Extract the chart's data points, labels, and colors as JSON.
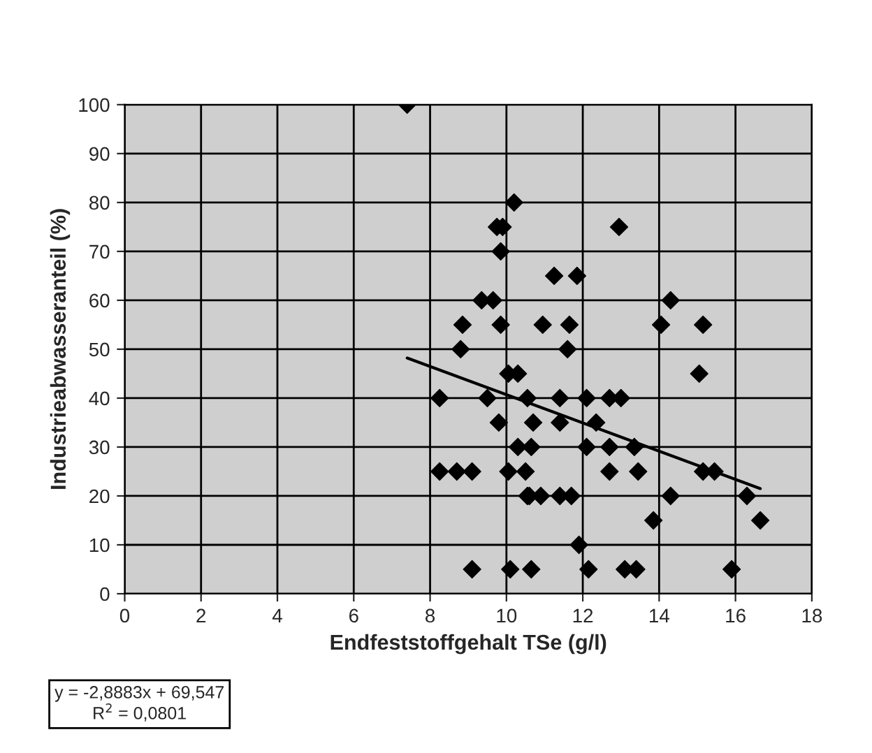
{
  "chart_data": {
    "type": "scatter",
    "xlabel": "Endfeststoffgehalt TSe (g/l)",
    "ylabel": "Industrieabwasseranteil (%)",
    "series": [
      {
        "color": "#000000",
        "marker": "diamond",
        "x": [
          7.4,
          10.2,
          9.75,
          9.9,
          12.95,
          9.85,
          11.25,
          11.85,
          9.35,
          9.65,
          14.3,
          8.85,
          9.85,
          10.95,
          11.65,
          14.05,
          15.15,
          8.8,
          11.6,
          10.05,
          10.3,
          15.05,
          8.25,
          9.5,
          10.55,
          11.4,
          12.1,
          12.7,
          13.0,
          9.8,
          10.7,
          11.4,
          12.35,
          10.3,
          10.65,
          12.1,
          12.7,
          13.35,
          8.25,
          8.7,
          9.1,
          10.05,
          10.5,
          12.7,
          13.45,
          15.15,
          15.45,
          10.6,
          10.55,
          10.9,
          11.4,
          11.7,
          14.3,
          16.3,
          13.85,
          16.65,
          11.9,
          9.1,
          10.1,
          10.65,
          12.15,
          13.1,
          13.4,
          15.9
        ],
        "values": [
          100,
          80,
          75,
          75,
          75,
          70,
          65,
          65,
          60,
          60,
          60,
          55,
          55,
          55,
          55,
          55,
          55,
          50,
          50,
          45,
          45,
          45,
          40,
          40,
          40,
          40,
          40,
          40,
          40,
          35,
          35,
          35,
          35,
          30,
          30,
          30,
          30,
          30,
          25,
          25,
          25,
          25,
          25,
          25,
          25,
          25,
          25,
          20,
          20,
          20,
          20,
          20,
          20,
          20,
          15,
          15,
          10,
          5,
          5,
          5,
          5,
          5,
          5,
          5
        ]
      },
      {
        "type": "line",
        "color": "#000000",
        "x": [
          7.4,
          16.65
        ],
        "values": [
          48.2,
          21.5
        ]
      }
    ],
    "xlim": [
      0,
      18
    ],
    "xticks": [
      0,
      2,
      4,
      6,
      8,
      10,
      12,
      14,
      16,
      18
    ],
    "ylim": [
      0,
      100
    ],
    "yticks": [
      0,
      10,
      20,
      30,
      40,
      50,
      60,
      70,
      80,
      90,
      100
    ],
    "grid": true,
    "annotations": [
      "y = -2,8883x + 69,547\nR$^{2}$ = 0,0801"
    ]
  }
}
